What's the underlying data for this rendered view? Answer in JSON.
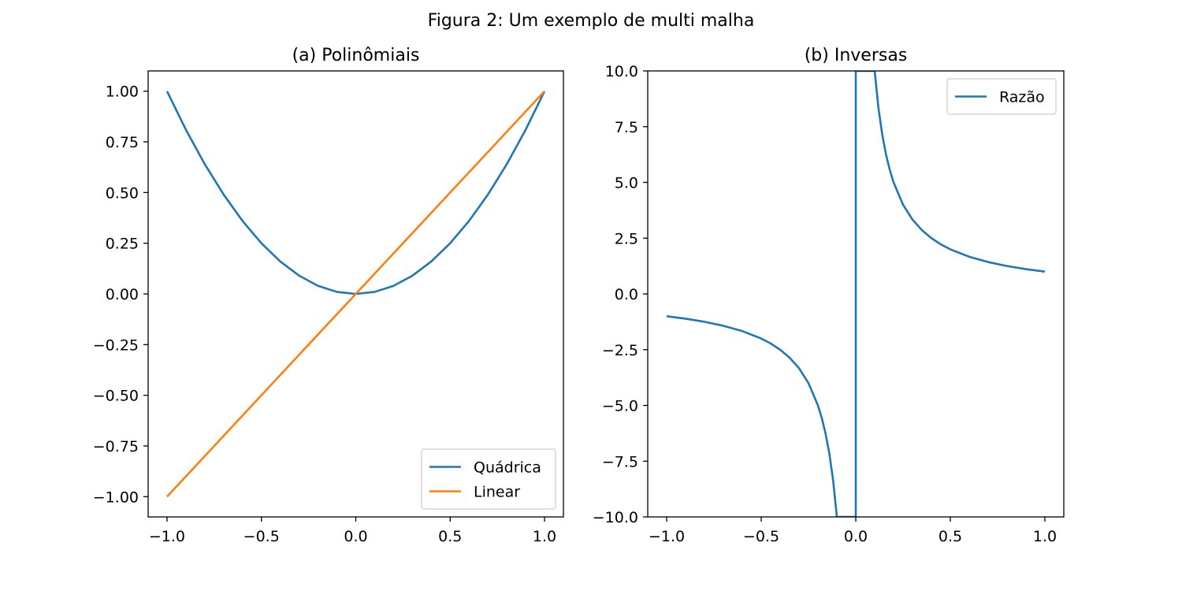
{
  "figure": {
    "title": "Figura 2: Um exemplo de multi malha"
  },
  "chart_data": [
    {
      "type": "line",
      "title": "(a) Polinômiais",
      "xlabel": "",
      "ylabel": "",
      "xlim": [
        -1.1,
        1.1
      ],
      "ylim": [
        -1.1,
        1.1
      ],
      "xticks": [
        -1.0,
        -0.5,
        0.0,
        0.5,
        1.0
      ],
      "xtick_labels": [
        "−1.0",
        "−0.5",
        "0.0",
        "0.5",
        "1.0"
      ],
      "yticks": [
        1.0,
        0.75,
        0.5,
        0.25,
        0.0,
        -0.25,
        -0.5,
        -0.75,
        -1.0
      ],
      "ytick_labels": [
        "1.00",
        "0.75",
        "0.50",
        "0.25",
        "0.00",
        "−0.25",
        "−0.50",
        "−0.75",
        "−1.00"
      ],
      "grid": false,
      "legend": "lower right",
      "series": [
        {
          "name": "Quádrica",
          "color": "#1f77b4",
          "x": [
            -1.0,
            -0.9,
            -0.8,
            -0.7,
            -0.6,
            -0.5,
            -0.4,
            -0.3,
            -0.2,
            -0.1,
            0.0,
            0.1,
            0.2,
            0.3,
            0.4,
            0.5,
            0.6,
            0.7,
            0.8,
            0.9,
            1.0
          ],
          "y": [
            1.0,
            0.81,
            0.64,
            0.49,
            0.36,
            0.25,
            0.16,
            0.09,
            0.04,
            0.01,
            0.0,
            0.01,
            0.04,
            0.09,
            0.16,
            0.25,
            0.36,
            0.49,
            0.64,
            0.81,
            1.0
          ]
        },
        {
          "name": "Linear",
          "color": "#ff7f0e",
          "x": [
            -1.0,
            1.0
          ],
          "y": [
            -1.0,
            1.0
          ]
        }
      ]
    },
    {
      "type": "line",
      "title": "(b) Inversas",
      "xlabel": "",
      "ylabel": "",
      "xlim": [
        -1.1,
        1.1
      ],
      "ylim": [
        -10.0,
        10.0
      ],
      "xticks": [
        -1.0,
        -0.5,
        0.0,
        0.5,
        1.0
      ],
      "xtick_labels": [
        "−1.0",
        "−0.5",
        "0.0",
        "0.5",
        "1.0"
      ],
      "yticks": [
        10.0,
        7.5,
        5.0,
        2.5,
        0.0,
        -2.5,
        -5.0,
        -7.5,
        -10.0
      ],
      "ytick_labels": [
        "10.0",
        "7.5",
        "5.0",
        "2.5",
        "0.0",
        "−2.5",
        "−5.0",
        "−7.5",
        "−10.0"
      ],
      "grid": false,
      "legend": "upper right",
      "series": [
        {
          "name": "Razão",
          "color": "#1f77b4",
          "x": [
            -1.0,
            -0.9,
            -0.8,
            -0.7,
            -0.6,
            -0.5,
            -0.45,
            -0.4,
            -0.35,
            -0.3,
            -0.25,
            -0.2,
            -0.18,
            -0.16,
            -0.14,
            -0.12,
            -0.1,
            0.0,
            0.0,
            0.1,
            0.12,
            0.14,
            0.16,
            0.18,
            0.2,
            0.25,
            0.3,
            0.35,
            0.4,
            0.45,
            0.5,
            0.6,
            0.7,
            0.8,
            0.9,
            1.0
          ],
          "y": [
            -1.0,
            -1.111,
            -1.25,
            -1.429,
            -1.667,
            -2.0,
            -2.222,
            -2.5,
            -2.857,
            -3.333,
            -4.0,
            -5.0,
            -5.556,
            -6.25,
            -7.143,
            -8.333,
            -10.0,
            -10.0,
            10.0,
            10.0,
            8.333,
            7.143,
            6.25,
            5.556,
            5.0,
            4.0,
            3.333,
            2.857,
            2.5,
            2.222,
            2.0,
            1.667,
            1.429,
            1.25,
            1.111,
            1.0
          ]
        }
      ]
    }
  ]
}
